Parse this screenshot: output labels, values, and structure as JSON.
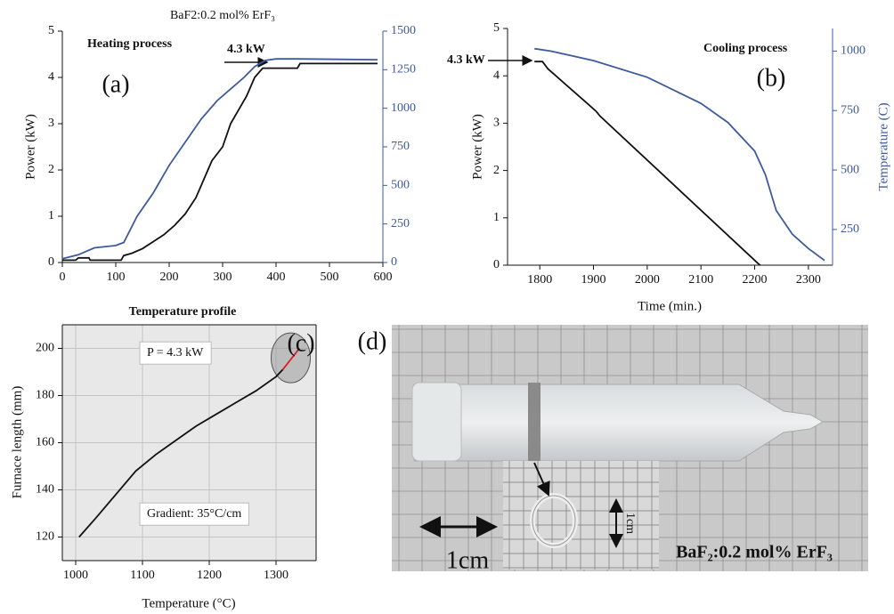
{
  "chart_data": [
    {
      "type": "line",
      "title": "BaF2:0.2 mol% ErF₃",
      "ylabel": "Power (kW)",
      "annotations": [
        "Heating process",
        "(a)",
        "4.3 kW"
      ],
      "xlim": [
        0,
        600
      ],
      "xticks": [
        0,
        100,
        200,
        300,
        400,
        500,
        600
      ],
      "ylim": [
        0,
        5
      ],
      "yticks": [
        0,
        1,
        2,
        3,
        4,
        5
      ],
      "y2lim": [
        0,
        1500
      ],
      "y2ticks": [
        0,
        250,
        500,
        750,
        1000,
        1250,
        1500
      ],
      "series": [
        {
          "color": "#111111",
          "x": [
            0,
            25,
            30,
            50,
            52,
            110,
            115,
            130,
            150,
            170,
            190,
            210,
            230,
            250,
            265,
            280,
            300,
            315,
            330,
            345,
            360,
            375,
            440,
            445,
            590
          ],
          "values": [
            0.05,
            0.05,
            0.1,
            0.1,
            0.05,
            0.05,
            0.15,
            0.2,
            0.3,
            0.45,
            0.6,
            0.8,
            1.05,
            1.4,
            1.8,
            2.2,
            2.5,
            3.0,
            3.3,
            3.6,
            4.0,
            4.2,
            4.2,
            4.3,
            4.3
          ]
        },
        {
          "color": "#3d5a9e",
          "axis": "y2",
          "x": [
            0,
            30,
            60,
            100,
            115,
            140,
            170,
            200,
            230,
            260,
            290,
            320,
            340,
            360,
            380,
            400,
            440,
            590
          ],
          "values": [
            25,
            50,
            95,
            110,
            130,
            300,
            450,
            630,
            780,
            930,
            1050,
            1140,
            1200,
            1270,
            1310,
            1320,
            1320,
            1315
          ]
        }
      ]
    },
    {
      "type": "line",
      "xlabel": "Time (min.)",
      "ylabel": "Power (kW)",
      "y2label": "Temperature (C)",
      "annotations": [
        "Cooling process",
        "(b)",
        "4.3 kW"
      ],
      "xlim": [
        1740,
        2345
      ],
      "xticks": [
        1800,
        1900,
        2000,
        2100,
        2200,
        2300
      ],
      "ylim": [
        0,
        5
      ],
      "yticks": [
        0,
        1,
        2,
        3,
        4,
        5
      ],
      "y2lim": [
        100,
        1095
      ],
      "y2ticks": [
        250,
        500,
        750,
        1000
      ],
      "series": [
        {
          "color": "#111111",
          "x": [
            1790,
            1805,
            1815,
            1830,
            1845,
            1860,
            1875,
            1890,
            1905,
            1912,
            2205,
            2210
          ],
          "values": [
            4.3,
            4.3,
            4.15,
            4.0,
            3.85,
            3.7,
            3.55,
            3.4,
            3.25,
            3.15,
            0.05,
            0
          ]
        },
        {
          "color": "#3d5a9e",
          "axis": "y2",
          "x": [
            1790,
            1820,
            1900,
            2000,
            2100,
            2150,
            2200,
            2220,
            2240,
            2270,
            2300,
            2330
          ],
          "values": [
            1010,
            1000,
            960,
            890,
            780,
            700,
            580,
            480,
            330,
            230,
            170,
            120
          ]
        }
      ]
    },
    {
      "type": "line",
      "title": "Temperature profile",
      "xlabel": "Temperature (°C)",
      "ylabel": "Furnace length (mm)",
      "annotations": [
        "P = 4.3 kW",
        "Gradient: 35°C/cm",
        "(c)"
      ],
      "grid": true,
      "xlim": [
        980,
        1360
      ],
      "xticks": [
        1000,
        1100,
        1200,
        1300
      ],
      "ylim": [
        110,
        210
      ],
      "yticks": [
        120,
        140,
        160,
        180,
        200
      ],
      "series": [
        {
          "color": "#111111",
          "x": [
            1005,
            1030,
            1060,
            1090,
            1120,
            1150,
            1180,
            1210,
            1240,
            1270,
            1300,
            1310
          ],
          "values": [
            120,
            128,
            138,
            148,
            155,
            161,
            167,
            172,
            177,
            182,
            188,
            191
          ]
        },
        {
          "color": "#d62020",
          "x": [
            1310,
            1335
          ],
          "values": [
            191,
            200
          ]
        }
      ]
    }
  ],
  "photo": {
    "label": "(d)",
    "scale_label": "1cm",
    "inset_scale_label": "1cm",
    "caption": "BaF₂:0.2 mol% ErF₃"
  }
}
